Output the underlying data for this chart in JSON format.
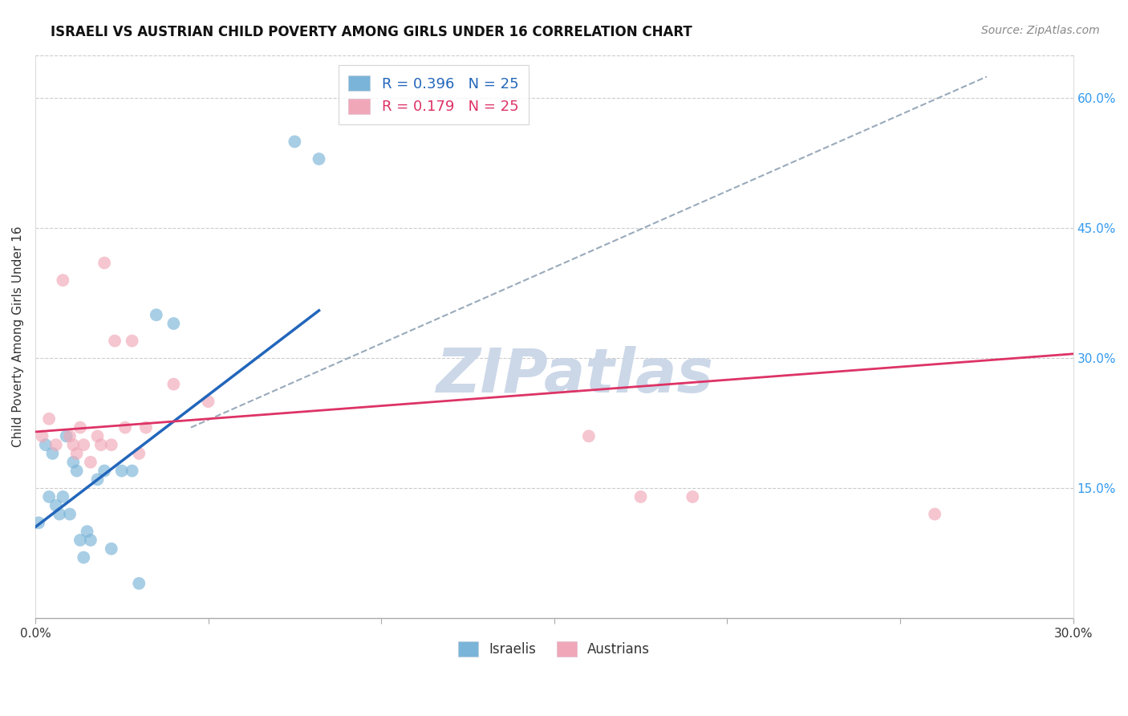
{
  "title": "ISRAELI VS AUSTRIAN CHILD POVERTY AMONG GIRLS UNDER 16 CORRELATION CHART",
  "source": "Source: ZipAtlas.com",
  "ylabel": "Child Poverty Among Girls Under 16",
  "xlim": [
    0.0,
    0.3
  ],
  "ylim": [
    0.0,
    0.65
  ],
  "xticks": [
    0.0,
    0.05,
    0.1,
    0.15,
    0.2,
    0.25,
    0.3
  ],
  "xtick_labels": [
    "0.0%",
    "",
    "",
    "",
    "",
    "",
    "30.0%"
  ],
  "yticks_right": [
    0.15,
    0.3,
    0.45,
    0.6
  ],
  "ytick_labels_right": [
    "15.0%",
    "30.0%",
    "45.0%",
    "60.0%"
  ],
  "legend_r_blue": "0.396",
  "legend_n_blue": "25",
  "legend_r_pink": "0.179",
  "legend_n_pink": "25",
  "israelis_x": [
    0.001,
    0.003,
    0.004,
    0.005,
    0.006,
    0.007,
    0.008,
    0.009,
    0.01,
    0.011,
    0.012,
    0.013,
    0.014,
    0.015,
    0.016,
    0.018,
    0.02,
    0.022,
    0.025,
    0.028,
    0.03,
    0.035,
    0.04,
    0.075,
    0.082
  ],
  "israelis_y": [
    0.11,
    0.2,
    0.14,
    0.19,
    0.13,
    0.12,
    0.14,
    0.21,
    0.12,
    0.18,
    0.17,
    0.09,
    0.07,
    0.1,
    0.09,
    0.16,
    0.17,
    0.08,
    0.17,
    0.17,
    0.04,
    0.35,
    0.34,
    0.55,
    0.53
  ],
  "austrians_x": [
    0.002,
    0.004,
    0.006,
    0.008,
    0.01,
    0.011,
    0.012,
    0.013,
    0.014,
    0.016,
    0.018,
    0.019,
    0.02,
    0.022,
    0.023,
    0.026,
    0.028,
    0.03,
    0.032,
    0.04,
    0.05,
    0.16,
    0.175,
    0.19,
    0.26
  ],
  "austrians_y": [
    0.21,
    0.23,
    0.2,
    0.39,
    0.21,
    0.2,
    0.19,
    0.22,
    0.2,
    0.18,
    0.21,
    0.2,
    0.41,
    0.2,
    0.32,
    0.22,
    0.32,
    0.19,
    0.22,
    0.27,
    0.25,
    0.21,
    0.14,
    0.14,
    0.12
  ],
  "blue_line_x": [
    0.0,
    0.082
  ],
  "blue_line_y": [
    0.105,
    0.355
  ],
  "pink_line_x": [
    0.0,
    0.3
  ],
  "pink_line_y": [
    0.215,
    0.305
  ],
  "diag_line_x": [
    0.045,
    0.275
  ],
  "diag_line_y": [
    0.22,
    0.625
  ],
  "watermark": "ZIPatlas",
  "watermark_color": "#ccd8e8",
  "scatter_size": 130,
  "blue_color": "#7ab4d8",
  "pink_color": "#f0a8b8",
  "blue_line_color": "#2266bb",
  "pink_line_color": "#dd3366",
  "diag_color": "#99aabb",
  "grid_color": "#cccccc",
  "title_fontsize": 12,
  "source_fontsize": 10,
  "tick_fontsize": 11,
  "ylabel_fontsize": 11
}
